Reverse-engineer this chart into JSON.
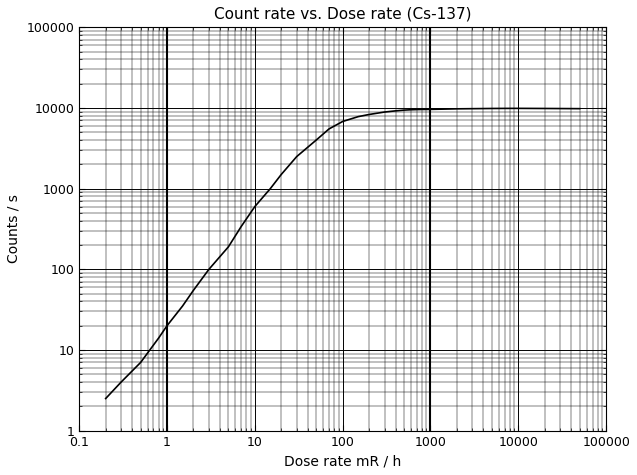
{
  "title": "Count rate vs. Dose rate (Cs-137)",
  "xlabel": "Dose rate mR / h",
  "ylabel": "Counts / s",
  "xlim": [
    0.1,
    100000
  ],
  "ylim": [
    1,
    100000
  ],
  "vlines": [
    1,
    1000
  ],
  "curve_x": [
    0.2,
    0.3,
    0.5,
    0.8,
    1.0,
    1.5,
    2.0,
    3.0,
    5.0,
    7.0,
    10,
    15,
    20,
    30,
    50,
    70,
    100,
    150,
    200,
    300,
    400,
    500,
    600,
    700,
    800,
    1000,
    2000,
    5000,
    7000,
    10000,
    20000,
    50000
  ],
  "curve_y": [
    2.5,
    4.0,
    7.0,
    14,
    20,
    35,
    55,
    100,
    190,
    340,
    600,
    1000,
    1500,
    2500,
    4000,
    5500,
    6800,
    7800,
    8300,
    8900,
    9200,
    9400,
    9500,
    9550,
    9580,
    9600,
    9750,
    9850,
    9870,
    9880,
    9850,
    9800
  ],
  "line_color": "#000000",
  "vline_color": "#000000",
  "grid_major_color": "#000000",
  "grid_minor_color": "#000000",
  "bg_color": "#ffffff",
  "title_fontsize": 11,
  "label_fontsize": 10,
  "tick_fontsize": 9
}
